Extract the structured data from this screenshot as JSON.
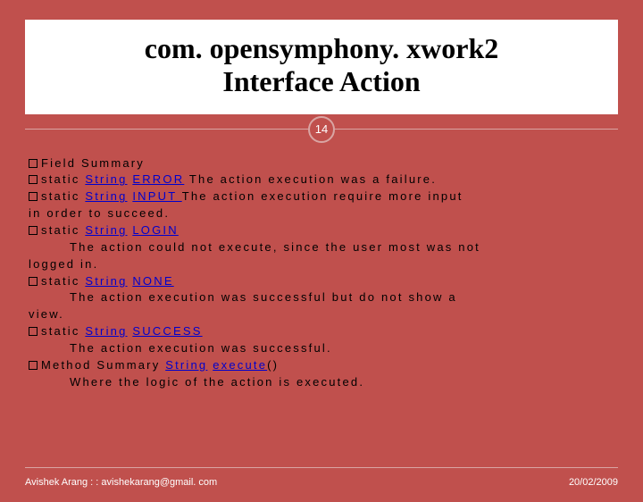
{
  "title": {
    "line1": "com. opensymphony. xwork2",
    "line2": "Interface Action"
  },
  "pageNumber": "14",
  "lines": [
    {
      "bullet": true,
      "segs": [
        {
          "t": "Field Summary"
        }
      ]
    },
    {
      "bullet": true,
      "segs": [
        {
          "t": "static "
        },
        {
          "t": "String",
          "link": true
        },
        {
          "t": " "
        },
        {
          "t": "ERROR",
          "link": true
        },
        {
          "t": " The action execution was a failure."
        }
      ]
    },
    {
      "bullet": true,
      "segs": [
        {
          "t": "static "
        },
        {
          "t": "String",
          "link": true
        },
        {
          "t": " "
        },
        {
          "t": "INPUT ",
          "link": true
        },
        {
          "t": " The action execution require more input"
        }
      ]
    },
    {
      "bullet": false,
      "segs": [
        {
          "t": "in order to succeed."
        }
      ]
    },
    {
      "bullet": true,
      "segs": [
        {
          "t": "static "
        },
        {
          "t": "String",
          "link": true
        },
        {
          "t": " "
        },
        {
          "t": "LOGIN",
          "link": true
        }
      ]
    },
    {
      "bullet": false,
      "indent": true,
      "segs": [
        {
          "t": "The action could not execute, since the user most was not"
        }
      ]
    },
    {
      "bullet": false,
      "segs": [
        {
          "t": "logged in."
        }
      ]
    },
    {
      "bullet": true,
      "segs": [
        {
          "t": "static "
        },
        {
          "t": "String",
          "link": true
        },
        {
          "t": " "
        },
        {
          "t": "NONE",
          "link": true
        }
      ]
    },
    {
      "bullet": false,
      "indent": true,
      "segs": [
        {
          "t": "The action execution was successful but do not show a"
        }
      ]
    },
    {
      "bullet": false,
      "segs": [
        {
          "t": "view."
        }
      ]
    },
    {
      "bullet": true,
      "segs": [
        {
          "t": "static "
        },
        {
          "t": "String",
          "link": true
        },
        {
          "t": " "
        },
        {
          "t": "SUCCESS",
          "link": true
        }
      ]
    },
    {
      "bullet": false,
      "indent": true,
      "segs": [
        {
          "t": "The action execution was successful."
        }
      ]
    },
    {
      "bullet": true,
      "segs": [
        {
          "t": "Method Summary "
        },
        {
          "t": " String",
          "link": true
        },
        {
          "t": " "
        },
        {
          "t": "execute",
          "link": true
        },
        {
          "t": "()"
        }
      ]
    },
    {
      "bullet": false,
      "indent": true,
      "segs": [
        {
          "t": "Where the logic of the action is executed."
        }
      ]
    }
  ],
  "footer": {
    "left": "Avishek Arang : : avishekarang@gmail. com",
    "right": "20/02/2009"
  }
}
